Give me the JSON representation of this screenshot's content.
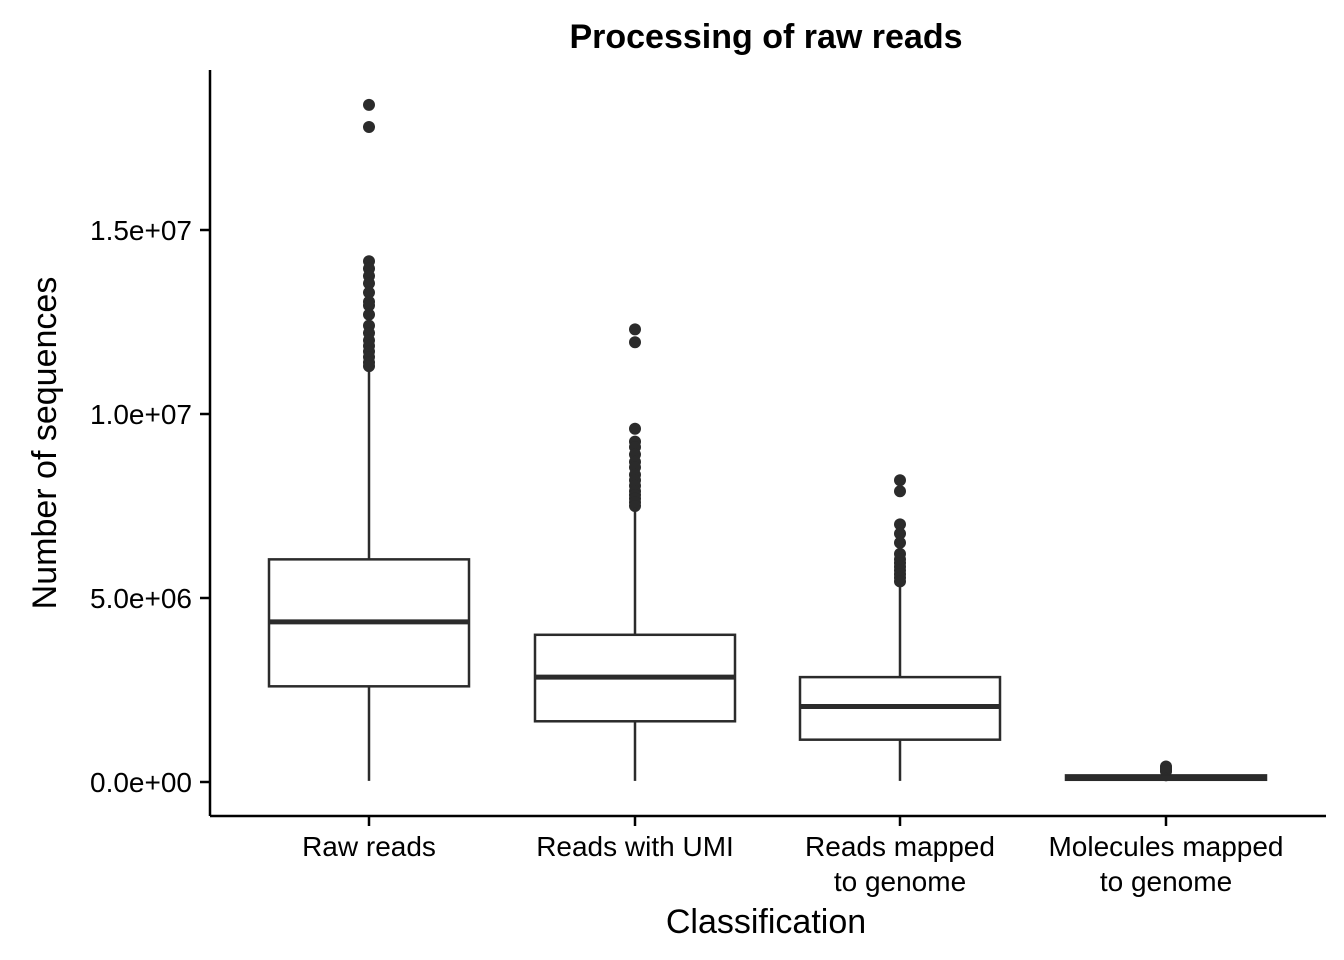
{
  "chart_data": {
    "type": "boxplot",
    "title": "Processing of raw reads",
    "xlabel": "Classification",
    "ylabel": "Number of sequences",
    "ylim": [
      -900000,
      19500000
    ],
    "yticks": [
      0,
      5000000,
      10000000,
      15000000
    ],
    "ytick_labels": [
      "0.0e+00",
      "5.0e+06",
      "1.0e+07",
      "1.5e+07"
    ],
    "grid": false,
    "categories": [
      [
        "Raw reads"
      ],
      [
        "Reads with UMI"
      ],
      [
        "Reads mapped",
        "to genome"
      ],
      [
        "Molecules mapped",
        "to genome"
      ]
    ],
    "boxes": [
      {
        "whisker_low": 30000,
        "q1": 2600000,
        "median": 4350000,
        "q3": 6050000,
        "whisker_high": 11200000,
        "outliers": [
          18400000,
          17800000,
          14150000,
          13950000,
          13750000,
          13550000,
          13300000,
          13050000,
          12950000,
          12700000,
          12400000,
          12200000,
          12000000,
          11850000,
          11700000,
          11550000,
          11400000,
          11300000
        ]
      },
      {
        "whisker_low": 30000,
        "q1": 1650000,
        "median": 2850000,
        "q3": 4000000,
        "whisker_high": 7450000,
        "outliers": [
          12300000,
          11950000,
          9600000,
          9250000,
          9100000,
          8900000,
          8700000,
          8550000,
          8350000,
          8200000,
          8050000,
          7900000,
          7800000,
          7700000,
          7600000,
          7500000
        ]
      },
      {
        "whisker_low": 30000,
        "q1": 1150000,
        "median": 2050000,
        "q3": 2850000,
        "whisker_high": 5350000,
        "outliers": [
          8200000,
          7900000,
          7000000,
          6750000,
          6500000,
          6200000,
          6050000,
          5950000,
          5850000,
          5750000,
          5650000,
          5550000,
          5450000
        ]
      },
      {
        "whisker_low": 20000,
        "q1": 60000,
        "median": 120000,
        "q3": 180000,
        "whisker_high": 260000,
        "outliers": [
          420000,
          380000,
          340000,
          310000,
          290000
        ]
      }
    ]
  }
}
